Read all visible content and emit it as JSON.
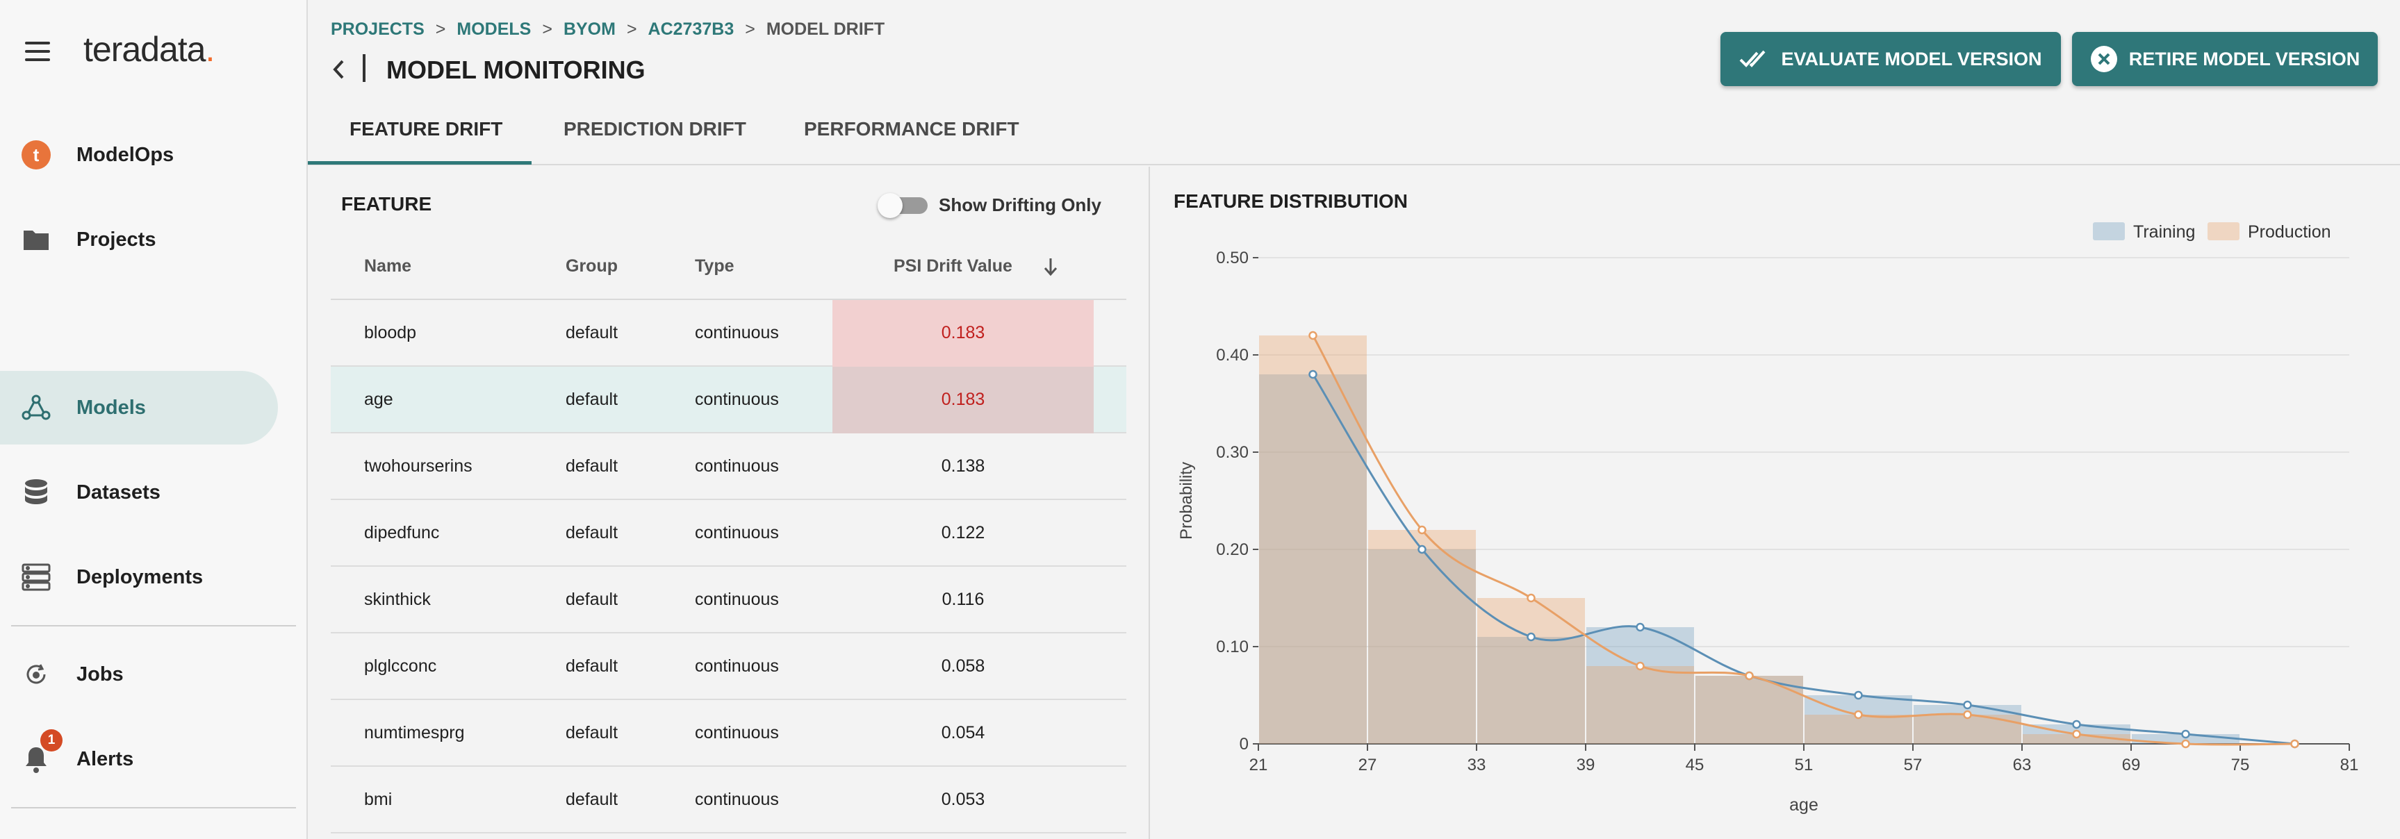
{
  "brand": {
    "name": "teradata",
    "dot": "."
  },
  "sidebar": {
    "items": [
      {
        "label": "ModelOps",
        "icon": "teradata-logo-icon"
      },
      {
        "label": "Projects",
        "icon": "folder-icon"
      },
      {
        "label": "Models",
        "icon": "model-graph-icon",
        "active": true
      },
      {
        "label": "Datasets",
        "icon": "database-icon"
      },
      {
        "label": "Deployments",
        "icon": "server-icon"
      },
      {
        "label": "Jobs",
        "icon": "jobs-icon"
      },
      {
        "label": "Alerts",
        "icon": "bell-icon",
        "badge": "1"
      }
    ]
  },
  "breadcrumb": {
    "items": [
      "PROJECTS",
      "MODELS",
      "BYOM",
      "AC2737B3"
    ],
    "separator": ">",
    "current": "MODEL DRIFT"
  },
  "page": {
    "title": "MODEL MONITORING"
  },
  "actions": {
    "evaluate": "EVALUATE MODEL VERSION",
    "retire": "RETIRE MODEL VERSION"
  },
  "tabs": [
    {
      "label": "FEATURE DRIFT",
      "active": true
    },
    {
      "label": "PREDICTION DRIFT"
    },
    {
      "label": "PERFORMANCE DRIFT"
    }
  ],
  "feature_panel": {
    "title": "FEATURE",
    "toggle_label": "Show Drifting Only",
    "columns": [
      "Name",
      "Group",
      "Type",
      "PSI Drift Value"
    ],
    "rows": [
      {
        "name": "bloodp",
        "group": "default",
        "type": "continuous",
        "psi": "0.183",
        "drifting": true
      },
      {
        "name": "age",
        "group": "default",
        "type": "continuous",
        "psi": "0.183",
        "drifting": true,
        "selected": true
      },
      {
        "name": "twohourserins",
        "group": "default",
        "type": "continuous",
        "psi": "0.138"
      },
      {
        "name": "dipedfunc",
        "group": "default",
        "type": "continuous",
        "psi": "0.122"
      },
      {
        "name": "skinthick",
        "group": "default",
        "type": "continuous",
        "psi": "0.116"
      },
      {
        "name": "plglcconc",
        "group": "default",
        "type": "continuous",
        "psi": "0.058"
      },
      {
        "name": "numtimesprg",
        "group": "default",
        "type": "continuous",
        "psi": "0.054"
      },
      {
        "name": "bmi",
        "group": "default",
        "type": "continuous",
        "psi": "0.053"
      }
    ]
  },
  "dist_panel": {
    "title": "FEATURE DISTRIBUTION"
  },
  "colors": {
    "accent": "#2e7878",
    "training": "#5b8fb5",
    "production": "#e8a066"
  },
  "chart_data": {
    "type": "bar",
    "title": "",
    "xlabel": "age",
    "ylabel": "Probability",
    "x_ticks": [
      "21",
      "27",
      "33",
      "39",
      "45",
      "51",
      "57",
      "63",
      "69",
      "75",
      "81"
    ],
    "y_ticks": [
      "0",
      "0.10",
      "0.20",
      "0.30",
      "0.40",
      "0.50"
    ],
    "ylim": [
      0,
      0.5
    ],
    "xlim": [
      21,
      81
    ],
    "bin_edges": [
      21,
      27,
      33,
      39,
      45,
      51,
      57,
      63,
      69,
      75,
      81
    ],
    "legend_position": "top-right",
    "grid": true,
    "series": [
      {
        "name": "Training",
        "color": "#5b8fb5",
        "values": [
          0.38,
          0.2,
          0.11,
          0.12,
          0.07,
          0.05,
          0.04,
          0.02,
          0.01,
          0.0
        ],
        "curve_x": [
          24,
          30,
          36,
          42,
          48,
          54,
          60,
          66,
          72,
          78
        ],
        "curve_y": [
          0.38,
          0.2,
          0.11,
          0.12,
          0.07,
          0.05,
          0.04,
          0.02,
          0.01,
          0.0
        ]
      },
      {
        "name": "Production",
        "color": "#e8a066",
        "values": [
          0.42,
          0.22,
          0.15,
          0.08,
          0.07,
          0.03,
          0.03,
          0.01,
          0.0,
          0.0
        ],
        "curve_x": [
          24,
          30,
          36,
          42,
          48,
          54,
          60,
          66,
          72,
          78
        ],
        "curve_y": [
          0.42,
          0.22,
          0.15,
          0.08,
          0.07,
          0.03,
          0.03,
          0.01,
          0.0,
          0.0
        ]
      }
    ]
  }
}
